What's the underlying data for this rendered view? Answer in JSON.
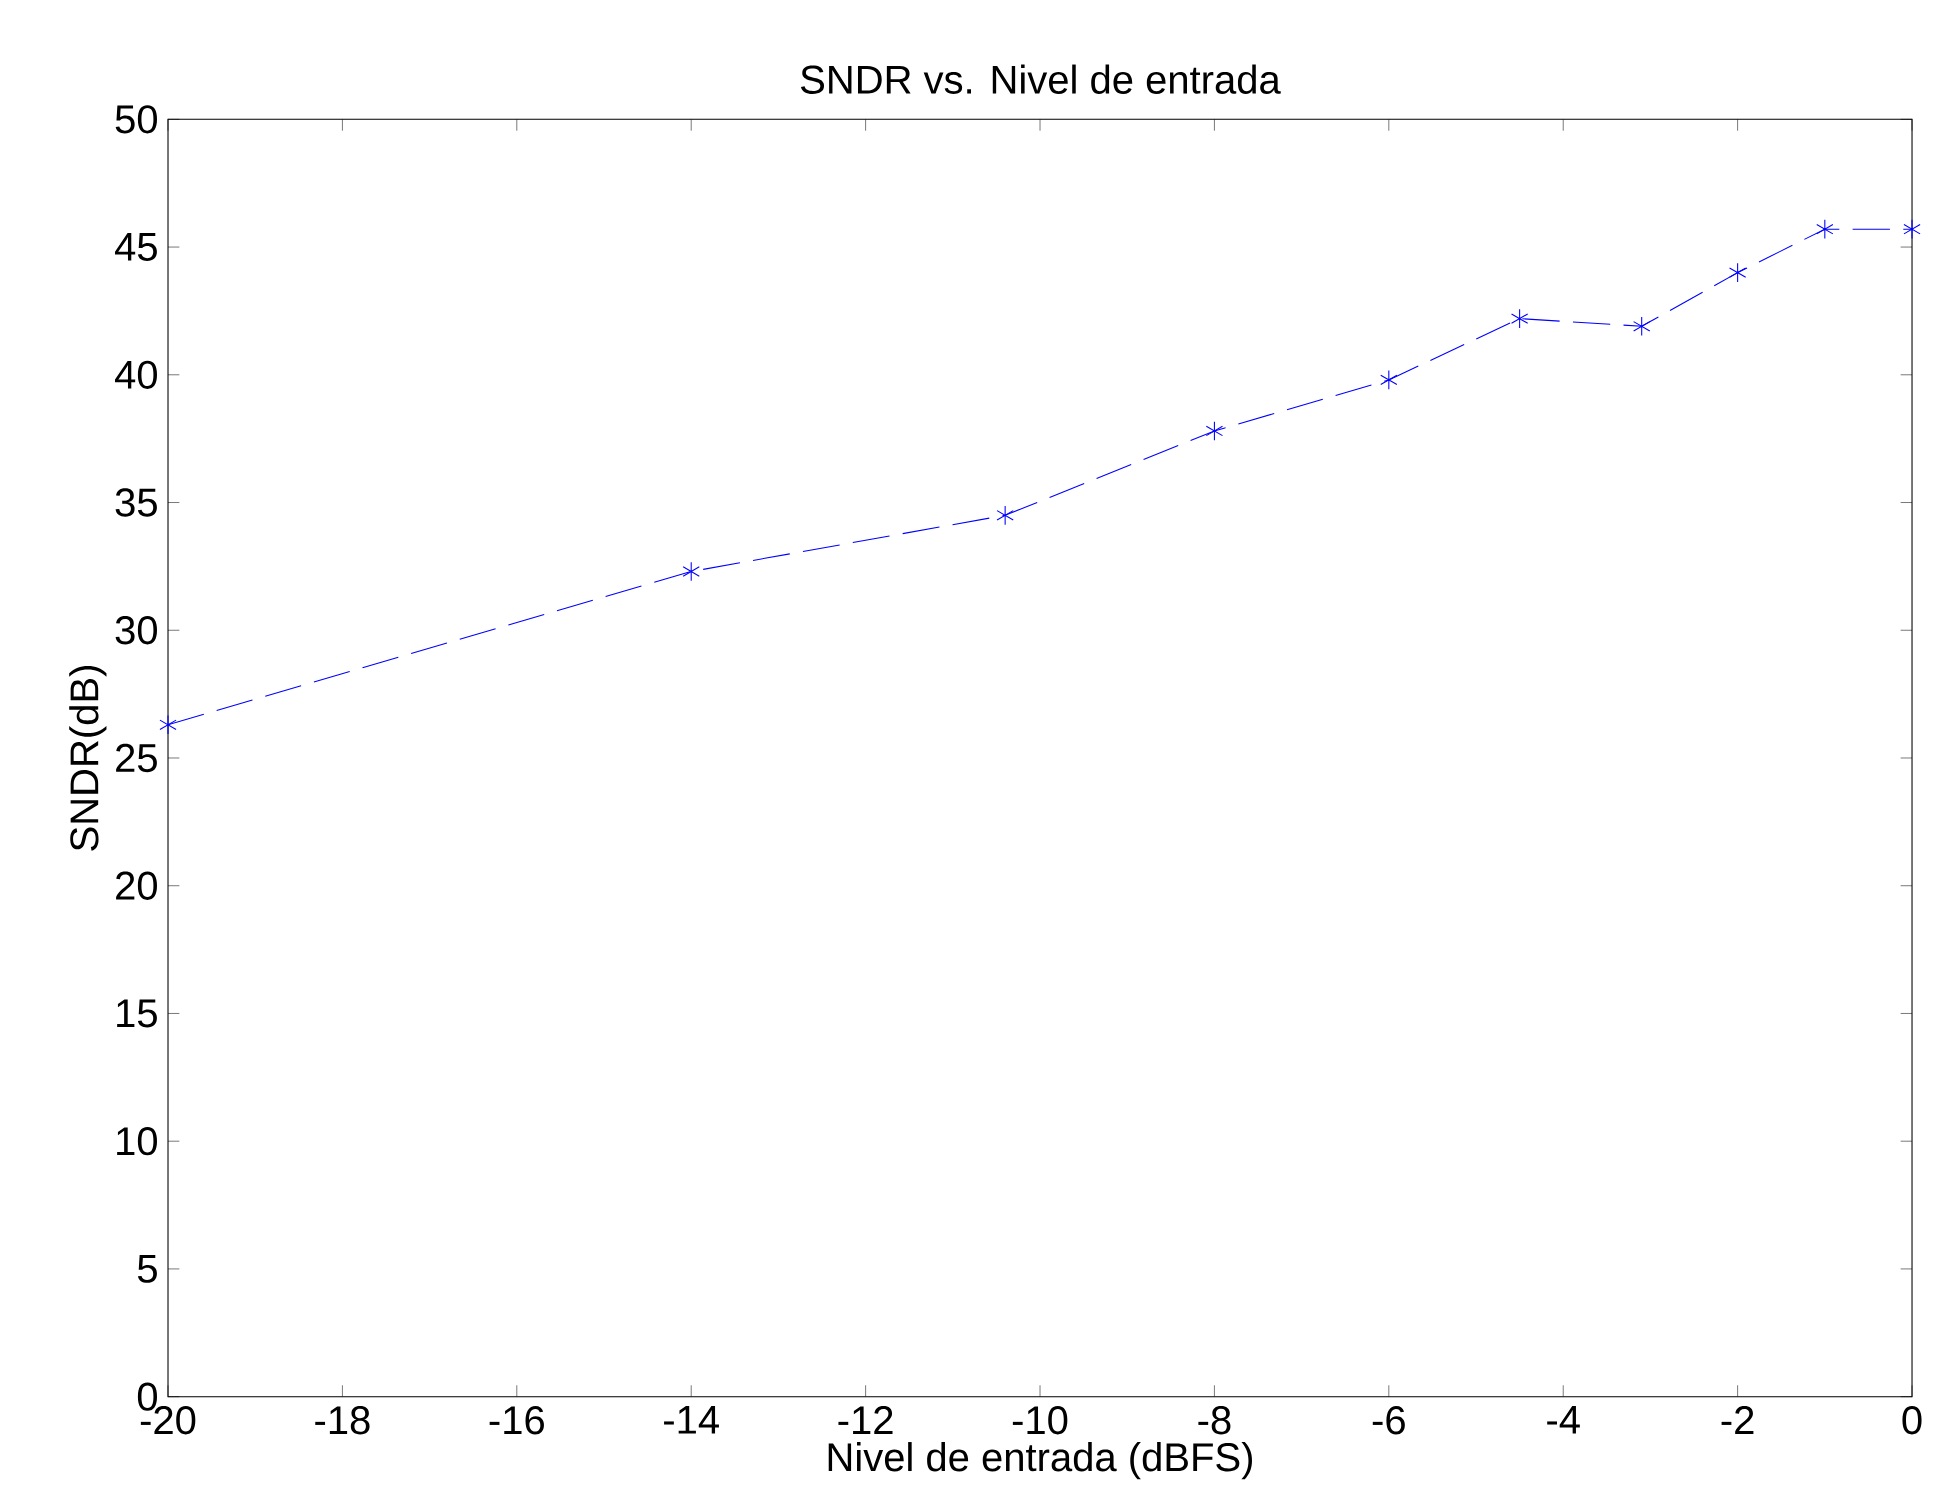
{
  "chart_data": {
    "type": "line",
    "title": "SNDR vs. Nivel de entrada",
    "xlabel": "Nivel de entrada (dBFS)",
    "ylabel": "SNDR(dB)",
    "x": [
      -20,
      -14,
      -10.4,
      -8,
      -6,
      -4.5,
      -3.1,
      -2,
      -1,
      0
    ],
    "series": [
      {
        "color": "#0000ff",
        "values": [
          26.3,
          32.3,
          34.5,
          37.8,
          39.8,
          42.2,
          41.9,
          44.0,
          45.7,
          45.7
        ]
      }
    ],
    "xlim": [
      -20,
      0
    ],
    "xticks": [
      -20,
      -18,
      -16,
      -14,
      -12,
      -10,
      -8,
      -6,
      -4,
      -2,
      0
    ],
    "ylim": [
      0,
      50
    ],
    "yticks": [
      0,
      5,
      10,
      15,
      20,
      25,
      30,
      35,
      40,
      45,
      50
    ],
    "grid": false,
    "marker": "cross",
    "line_style": "dashed"
  }
}
